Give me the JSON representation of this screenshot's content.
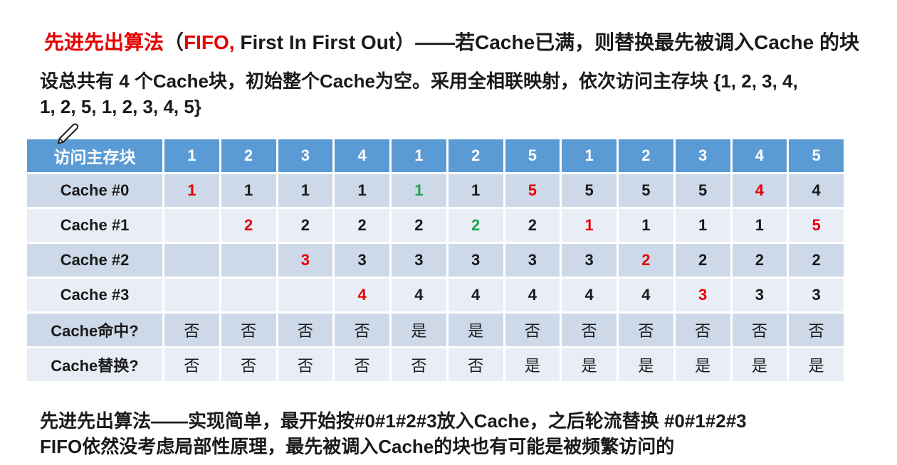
{
  "title": {
    "segments": [
      {
        "text": "先进先出算法",
        "color": "#e50000"
      },
      {
        "text": "（",
        "color": "#1a1a1a"
      },
      {
        "text": "FIFO,",
        "color": "#e50000"
      },
      {
        "text": " First In First Out）——若Cache已满，则替换最先被调入Cache 的块",
        "color": "#1a1a1a"
      }
    ]
  },
  "setup": {
    "line1": "设总共有 4 个Cache块，初始整个Cache为空。采用全相联映射，依次访问主存块 {1, 2, 3, 4,",
    "line2": "1, 2, 5, 1, 2, 3, 4, 5}"
  },
  "table": {
    "header": {
      "label": "访问主存块",
      "access_sequence": [
        "1",
        "2",
        "3",
        "4",
        "1",
        "2",
        "5",
        "1",
        "2",
        "3",
        "4",
        "5"
      ]
    },
    "rows": [
      {
        "label": "Cache #0",
        "type": "values",
        "cells": [
          {
            "v": "1",
            "c": "red"
          },
          {
            "v": "1"
          },
          {
            "v": "1"
          },
          {
            "v": "1"
          },
          {
            "v": "1",
            "c": "green"
          },
          {
            "v": "1"
          },
          {
            "v": "5",
            "c": "red"
          },
          {
            "v": "5"
          },
          {
            "v": "5"
          },
          {
            "v": "5"
          },
          {
            "v": "4",
            "c": "red"
          },
          {
            "v": "4"
          }
        ]
      },
      {
        "label": "Cache #1",
        "type": "values",
        "cells": [
          {
            "v": ""
          },
          {
            "v": "2",
            "c": "red"
          },
          {
            "v": "2"
          },
          {
            "v": "2"
          },
          {
            "v": "2"
          },
          {
            "v": "2",
            "c": "green"
          },
          {
            "v": "2"
          },
          {
            "v": "1",
            "c": "red"
          },
          {
            "v": "1"
          },
          {
            "v": "1"
          },
          {
            "v": "1"
          },
          {
            "v": "5",
            "c": "red"
          }
        ]
      },
      {
        "label": "Cache #2",
        "type": "values",
        "cells": [
          {
            "v": ""
          },
          {
            "v": ""
          },
          {
            "v": "3",
            "c": "red"
          },
          {
            "v": "3"
          },
          {
            "v": "3"
          },
          {
            "v": "3"
          },
          {
            "v": "3"
          },
          {
            "v": "3"
          },
          {
            "v": "2",
            "c": "red"
          },
          {
            "v": "2"
          },
          {
            "v": "2"
          },
          {
            "v": "2"
          }
        ]
      },
      {
        "label": "Cache #3",
        "type": "values",
        "cells": [
          {
            "v": ""
          },
          {
            "v": ""
          },
          {
            "v": ""
          },
          {
            "v": "4",
            "c": "red"
          },
          {
            "v": "4"
          },
          {
            "v": "4"
          },
          {
            "v": "4"
          },
          {
            "v": "4"
          },
          {
            "v": "4"
          },
          {
            "v": "3",
            "c": "red"
          },
          {
            "v": "3"
          },
          {
            "v": "3"
          }
        ]
      },
      {
        "label": "Cache命中?",
        "type": "yesno",
        "cells": [
          {
            "v": "否"
          },
          {
            "v": "否"
          },
          {
            "v": "否"
          },
          {
            "v": "否"
          },
          {
            "v": "是"
          },
          {
            "v": "是"
          },
          {
            "v": "否"
          },
          {
            "v": "否"
          },
          {
            "v": "否"
          },
          {
            "v": "否"
          },
          {
            "v": "否"
          },
          {
            "v": "否"
          }
        ]
      },
      {
        "label": "Cache替换?",
        "type": "yesno",
        "cells": [
          {
            "v": "否"
          },
          {
            "v": "否"
          },
          {
            "v": "否"
          },
          {
            "v": "否"
          },
          {
            "v": "否"
          },
          {
            "v": "否"
          },
          {
            "v": "是"
          },
          {
            "v": "是"
          },
          {
            "v": "是"
          },
          {
            "v": "是"
          },
          {
            "v": "是"
          },
          {
            "v": "是"
          }
        ]
      }
    ]
  },
  "footer": {
    "line1": "先进先出算法——实现简单，最开始按#0#1#2#3放入Cache，之后轮流替换 #0#1#2#3",
    "line2": "FIFO依然没考虑局部性原理，最先被调入Cache的块也有可能是被频繁访问的"
  },
  "icons": {
    "pen_cursor": "pen-cursor-icon"
  },
  "colors": {
    "header_bg": "#5b9bd5",
    "band_dark": "#cdd9e8",
    "band_light": "#e9eef6",
    "highlight_red": "#e50000",
    "highlight_green": "#1fa34a",
    "header_text": "#ffffff",
    "body_text": "#1a1a1a"
  }
}
